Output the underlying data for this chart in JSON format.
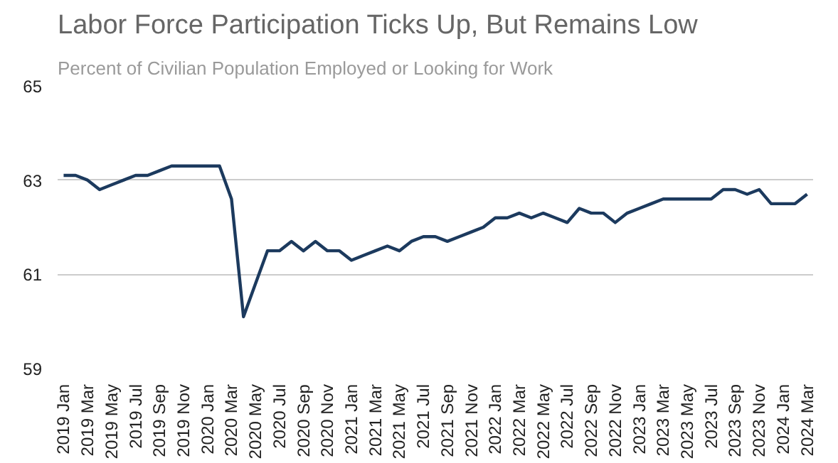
{
  "chart_data": {
    "type": "line",
    "title": "Labor Force Participation Ticks Up, But Remains Low",
    "subtitle": "Percent of Civilian Population Employed or Looking for Work",
    "categories": [
      "2019 Jan",
      null,
      "2019 Mar",
      null,
      "2019 May",
      null,
      "2019 Jul",
      null,
      "2019 Sep",
      null,
      "2019 Nov",
      null,
      "2020 Jan",
      null,
      "2020 Mar",
      null,
      "2020 May",
      null,
      "2020 Jul",
      null,
      "2020 Sep",
      null,
      "2020 Nov",
      null,
      "2021 Jan",
      null,
      "2021 Mar",
      null,
      "2021 May",
      null,
      "2021 Jul",
      null,
      "2021 Sep",
      null,
      "2021 Nov",
      null,
      "2022 Jan",
      null,
      "2022 Mar",
      null,
      "2022 May",
      null,
      "2022 Jul",
      null,
      "2022 Sep",
      null,
      "2022 Nov",
      null,
      "2023 Jan",
      null,
      "2023 Mar",
      null,
      "2023 May",
      null,
      "2023 Jul",
      null,
      "2023 Sep",
      null,
      "2023 Nov",
      null,
      "2024 Jan",
      null,
      "2024 Mar"
    ],
    "series": [
      {
        "color": "#1c3a5e",
        "values": [
          63.1,
          63.1,
          63.0,
          62.8,
          62.9,
          63.0,
          63.1,
          63.1,
          63.2,
          63.3,
          63.3,
          63.3,
          63.3,
          63.3,
          62.6,
          60.1,
          60.8,
          61.5,
          61.5,
          61.7,
          61.5,
          61.7,
          61.5,
          61.5,
          61.3,
          61.4,
          61.5,
          61.6,
          61.5,
          61.7,
          61.8,
          61.8,
          61.7,
          61.8,
          61.9,
          62.0,
          62.2,
          62.2,
          62.3,
          62.2,
          62.3,
          62.2,
          62.1,
          62.4,
          62.3,
          62.3,
          62.1,
          62.3,
          62.4,
          62.5,
          62.6,
          62.6,
          62.6,
          62.6,
          62.6,
          62.8,
          62.8,
          62.7,
          62.8,
          62.5,
          62.5,
          62.5,
          62.7
        ]
      }
    ],
    "ylim": [
      59,
      65
    ],
    "yticks": [
      59,
      61,
      63,
      65
    ],
    "grid": "y",
    "marker": "none",
    "line_style": "solid"
  }
}
